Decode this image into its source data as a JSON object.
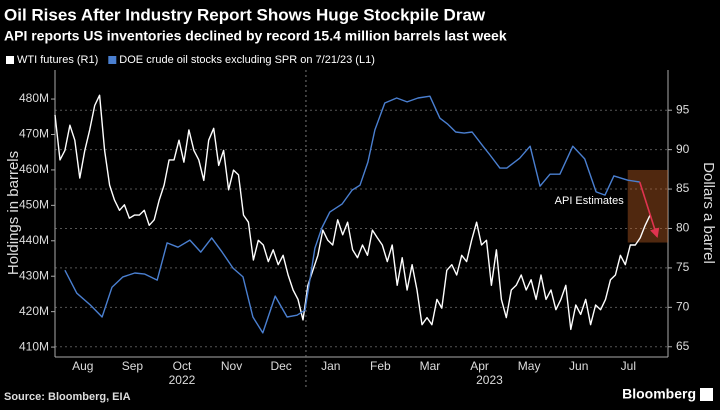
{
  "chart_data": {
    "type": "line",
    "title": "Oil Rises After Industry Report Shows Huge Stockpile Draw",
    "subtitle": "API reports US inventories declined by record 15.4 million barrels last week",
    "y_label": "Holdings in barrels",
    "y2_label": "Dollars a barrel",
    "source": "Source: Bloomberg, EIA",
    "brand": "Bloomberg",
    "xlim": [
      -0.06,
      12.3
    ],
    "xticks": [
      {
        "value": 0.5,
        "label": "Aug"
      },
      {
        "value": 1.5,
        "label": "Sep"
      },
      {
        "value": 2.5,
        "label": "Oct"
      },
      {
        "value": 3.5,
        "label": "Nov"
      },
      {
        "value": 4.5,
        "label": "Dec"
      },
      {
        "value": 5.5,
        "label": "Jan"
      },
      {
        "value": 6.5,
        "label": "Feb"
      },
      {
        "value": 7.5,
        "label": "Mar"
      },
      {
        "value": 8.5,
        "label": "Apr"
      },
      {
        "value": 9.5,
        "label": "May"
      },
      {
        "value": 10.5,
        "label": "Jun"
      },
      {
        "value": 11.5,
        "label": "Jul"
      }
    ],
    "year_labels": [
      {
        "value": 2.5,
        "label": "2022"
      },
      {
        "value": 8.7,
        "label": "2023"
      }
    ],
    "year_divider": 5,
    "ylim": [
      407.2,
      488.2
    ],
    "yticks": [
      {
        "value": 410,
        "label": "410M"
      },
      {
        "value": 420,
        "label": "420M"
      },
      {
        "value": 430,
        "label": "430M"
      },
      {
        "value": 440,
        "label": "440M"
      },
      {
        "value": 450,
        "label": "450M"
      },
      {
        "value": 460,
        "label": "460M"
      },
      {
        "value": 470,
        "label": "470M"
      },
      {
        "value": 480,
        "label": "480M"
      }
    ],
    "y2lim": [
      63.7,
      100.1
    ],
    "y2ticks": [
      65,
      70,
      75,
      80,
      85,
      90,
      95
    ],
    "grid": true,
    "series": [
      {
        "name": "WTI futures (R1)",
        "color": "#ffffff",
        "axis": "y2",
        "x": [
          -0.06,
          0.04,
          0.14,
          0.24,
          0.34,
          0.44,
          0.54,
          0.64,
          0.74,
          0.84,
          0.94,
          1.04,
          1.14,
          1.24,
          1.34,
          1.44,
          1.54,
          1.64,
          1.74,
          1.84,
          1.94,
          2.04,
          2.14,
          2.24,
          2.34,
          2.44,
          2.54,
          2.64,
          2.74,
          2.84,
          2.94,
          3.04,
          3.14,
          3.24,
          3.34,
          3.44,
          3.54,
          3.64,
          3.74,
          3.84,
          3.94,
          4.04,
          4.14,
          4.24,
          4.34,
          4.44,
          4.54,
          4.64,
          4.74,
          4.84,
          4.94,
          5.04,
          5.14,
          5.24,
          5.34,
          5.44,
          5.54,
          5.64,
          5.74,
          5.84,
          5.94,
          6.04,
          6.14,
          6.24,
          6.34,
          6.44,
          6.54,
          6.64,
          6.74,
          6.84,
          6.94,
          7.04,
          7.14,
          7.24,
          7.34,
          7.44,
          7.54,
          7.64,
          7.74,
          7.84,
          7.94,
          8.04,
          8.14,
          8.24,
          8.34,
          8.44,
          8.54,
          8.64,
          8.74,
          8.84,
          8.94,
          9.04,
          9.14,
          9.24,
          9.34,
          9.44,
          9.54,
          9.64,
          9.74,
          9.84,
          9.94,
          10.04,
          10.14,
          10.24,
          10.34,
          10.44,
          10.54,
          10.64,
          10.74,
          10.84,
          10.94,
          11.04,
          11.14,
          11.24,
          11.34,
          11.44,
          11.54,
          11.64,
          11.74,
          11.84,
          11.94
        ],
        "values": [
          94.4,
          88.7,
          89.9,
          93.1,
          91.2,
          86.4,
          89.9,
          92.5,
          95.6,
          96.9,
          89.9,
          85.5,
          83.6,
          82.3,
          83.0,
          81.3,
          81.7,
          81.7,
          82.3,
          80.4,
          81.1,
          83.6,
          85.5,
          88.7,
          88.7,
          91.2,
          88.4,
          92.5,
          89.9,
          88.7,
          86.1,
          91.2,
          92.7,
          88.0,
          89.9,
          84.9,
          87.4,
          86.8,
          81.7,
          80.8,
          76.0,
          78.5,
          77.9,
          75.8,
          77.3,
          75.4,
          76.6,
          74.1,
          72.2,
          71.0,
          68.4,
          72.8,
          74.7,
          76.6,
          79.8,
          78.5,
          77.9,
          81.1,
          79.2,
          80.8,
          77.3,
          76.3,
          77.9,
          76.6,
          79.8,
          78.8,
          77.9,
          75.8,
          77.9,
          72.8,
          76.3,
          72.2,
          75.4,
          72.2,
          67.8,
          68.7,
          67.8,
          71.0,
          69.9,
          74.7,
          75.4,
          74.1,
          76.6,
          75.8,
          78.5,
          80.8,
          77.9,
          78.5,
          72.8,
          77.3,
          71.0,
          68.7,
          72.2,
          72.8,
          74.1,
          72.2,
          73.5,
          71.0,
          74.1,
          71.0,
          72.2,
          69.7,
          71.0,
          72.8,
          67.2,
          70.3,
          69.1,
          71.0,
          67.8,
          70.3,
          69.7,
          71.0,
          73.5,
          74.1,
          76.6,
          75.4,
          77.9,
          77.9,
          78.8,
          80.4,
          81.7
        ]
      },
      {
        "name": "DOE crude oil stocks excluding SPR on 7/21/23 (L1)",
        "color": "#4a7fd0",
        "axis": "y",
        "x": [
          0.14,
          0.38,
          0.65,
          0.89,
          1.09,
          1.31,
          1.55,
          1.75,
          2.0,
          2.2,
          2.42,
          2.66,
          2.88,
          3.1,
          3.31,
          3.53,
          3.73,
          3.93,
          4.13,
          4.38,
          4.62,
          4.82,
          4.98,
          5.18,
          5.32,
          5.48,
          5.73,
          5.93,
          6.09,
          6.25,
          6.39,
          6.59,
          6.83,
          7.04,
          7.26,
          7.5,
          7.7,
          7.86,
          8.02,
          8.19,
          8.35,
          8.57,
          8.71,
          8.91,
          9.05,
          9.31,
          9.52,
          9.72,
          9.92,
          10.12,
          10.38,
          10.62,
          10.85,
          11.03,
          11.21,
          11.49,
          11.73
        ],
        "values": [
          431.7,
          425.2,
          421.9,
          418.5,
          426.9,
          429.8,
          430.9,
          430.6,
          428.9,
          439.4,
          438.2,
          440.2,
          436.8,
          440.8,
          436.8,
          432.3,
          429.8,
          418.5,
          414.0,
          424.4,
          418.5,
          419.0,
          420.4,
          437.9,
          443.6,
          448.1,
          450.4,
          454.3,
          455.7,
          462.2,
          471.3,
          478.9,
          480.3,
          479.2,
          480.3,
          480.8,
          474.6,
          472.9,
          470.7,
          470.4,
          470.7,
          466.7,
          464.2,
          460.5,
          460.5,
          463.3,
          466.7,
          455.4,
          458.8,
          458.8,
          466.7,
          463.1,
          453.8,
          452.9,
          458.3,
          457.1,
          456.6
        ]
      }
    ],
    "annotation": {
      "label": "API Estimates",
      "color": "#e0334f",
      "x": [
        11.73,
        12.08
      ],
      "values": [
        456.6,
        441.2
      ]
    }
  }
}
